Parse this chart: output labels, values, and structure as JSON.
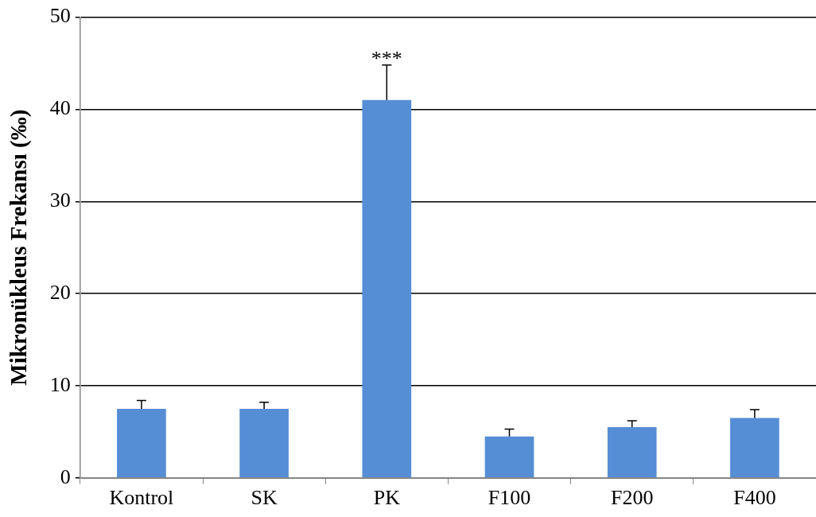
{
  "chart_data": {
    "type": "bar",
    "ylabel": "Mikronükleus Frekansı (‰)",
    "categories": [
      "Kontrol",
      "SK",
      "PK",
      "F100",
      "F200",
      "F400"
    ],
    "values": [
      7.5,
      7.5,
      41,
      4.5,
      5.5,
      6.5
    ],
    "errors": [
      [
        7.5,
        8.4
      ],
      [
        7.5,
        8.2
      ],
      [
        41,
        44.8
      ],
      [
        4.5,
        5.3
      ],
      [
        5.5,
        6.2
      ],
      [
        6.5,
        7.4
      ]
    ],
    "color": "#558ed5",
    "ylim": [
      0,
      50
    ],
    "yticks": [
      0,
      10,
      20,
      30,
      40,
      50
    ],
    "grid": "y",
    "legend": false,
    "annotations": [
      {
        "text": "***",
        "x": "PK",
        "y": 44.8
      }
    ]
  }
}
